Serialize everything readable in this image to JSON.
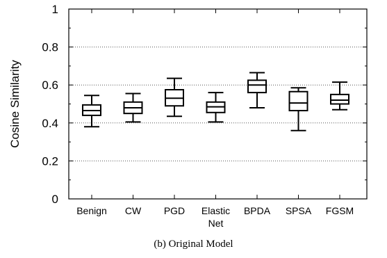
{
  "chart_data": {
    "type": "box",
    "ylabel": "Cosine Similarity",
    "xlabel": "",
    "ylim": [
      0,
      1
    ],
    "yticks": [
      0,
      0.2,
      0.4,
      0.6,
      0.8,
      1
    ],
    "ytick_labels": [
      "0",
      "0.2",
      "0.4",
      "0.6",
      "0.8",
      "1"
    ],
    "grid": "horizontal dotted",
    "categories": [
      "Benign",
      "CW",
      "PGD",
      "Elastic Net",
      "BPDA",
      "SPSA",
      "FGSM"
    ],
    "category_label_lines": [
      [
        "Benign"
      ],
      [
        "CW"
      ],
      [
        "PGD"
      ],
      [
        "Elastic",
        "Net"
      ],
      [
        "BPDA"
      ],
      [
        "SPSA"
      ],
      [
        "FGSM"
      ]
    ],
    "boxes": [
      {
        "category": "Benign",
        "whisker_low": 0.38,
        "q1": 0.44,
        "median": 0.465,
        "q3": 0.495,
        "whisker_high": 0.545
      },
      {
        "category": "CW",
        "whisker_low": 0.405,
        "q1": 0.45,
        "median": 0.48,
        "q3": 0.51,
        "whisker_high": 0.555
      },
      {
        "category": "PGD",
        "whisker_low": 0.435,
        "q1": 0.49,
        "median": 0.53,
        "q3": 0.575,
        "whisker_high": 0.635
      },
      {
        "category": "Elastic Net",
        "whisker_low": 0.405,
        "q1": 0.455,
        "median": 0.485,
        "q3": 0.51,
        "whisker_high": 0.56
      },
      {
        "category": "BPDA",
        "whisker_low": 0.48,
        "q1": 0.56,
        "median": 0.6,
        "q3": 0.625,
        "whisker_high": 0.665
      },
      {
        "category": "SPSA",
        "whisker_low": 0.36,
        "q1": 0.465,
        "median": 0.505,
        "q3": 0.565,
        "whisker_high": 0.585
      },
      {
        "category": "FGSM",
        "whisker_low": 0.47,
        "q1": 0.5,
        "median": 0.52,
        "q3": 0.55,
        "whisker_high": 0.615
      }
    ]
  },
  "caption": "(b) Original Model"
}
